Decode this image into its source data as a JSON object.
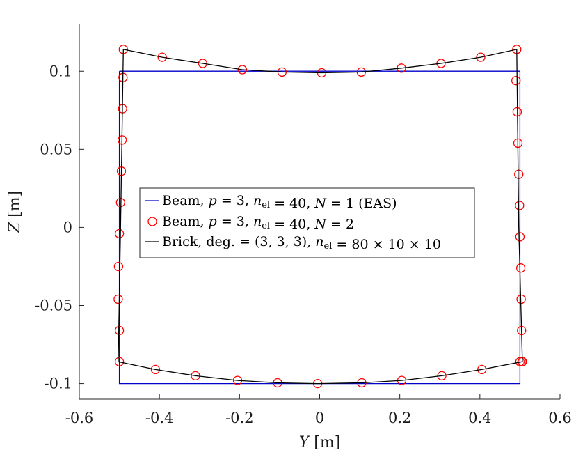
{
  "chart_data": {
    "type": "line",
    "title": "",
    "xlabel": "Y [m]",
    "ylabel": "Z [m]",
    "xlim": [
      -0.6,
      0.6
    ],
    "ylim": [
      -0.11,
      0.13
    ],
    "xticks": [
      -0.6,
      -0.4,
      -0.2,
      0,
      0.2,
      0.4,
      0.6
    ],
    "xtick_labels": [
      "-0.6",
      "-0.4",
      "-0.2",
      "0",
      "0.2",
      "0.4",
      "0.6"
    ],
    "yticks": [
      -0.1,
      -0.05,
      0,
      0.05,
      0.1
    ],
    "ytick_labels": [
      "-0.1",
      "-0.05",
      "0",
      "0.05",
      "0.1"
    ],
    "grid": false,
    "legend_position": "center-left",
    "series": [
      {
        "name": "Beam, p = 3, n_el = 40, N = 1 (EAS)",
        "legend_label": "Beam, p = 3, nel = 40, N = 1 (EAS)",
        "style": "line",
        "color": "#0000cc",
        "x": [
          -0.5,
          0.5,
          0.5,
          -0.5,
          -0.5
        ],
        "y": [
          0.1,
          0.1,
          -0.1,
          -0.1,
          0.1
        ]
      },
      {
        "name": "Beam, p = 3, n_el = 40, N = 2",
        "legend_label": "Beam, p = 3, nel = 40, N = 2",
        "style": "markers",
        "marker": "circle",
        "color": "#ff0000",
        "x": [
          -0.49,
          -0.393,
          -0.292,
          -0.193,
          -0.094,
          0.005,
          0.104,
          0.204,
          0.303,
          0.402,
          0.492,
          0.49,
          0.493,
          0.495,
          0.497,
          0.499,
          0.5,
          0.502,
          0.503,
          0.504,
          0.505,
          0.506,
          0.5,
          0.405,
          0.305,
          0.205,
          0.105,
          -0.005,
          -0.105,
          -0.205,
          -0.31,
          -0.41,
          -0.5,
          -0.5,
          -0.503,
          -0.502,
          -0.5,
          -0.497,
          -0.495,
          -0.493,
          -0.492,
          -0.491
        ],
        "y": [
          0.114,
          0.109,
          0.105,
          0.101,
          0.0995,
          0.099,
          0.0995,
          0.102,
          0.105,
          0.109,
          0.114,
          0.094,
          0.074,
          0.054,
          0.034,
          0.014,
          -0.006,
          -0.026,
          -0.046,
          -0.066,
          -0.086,
          -0.086,
          -0.086,
          -0.091,
          -0.095,
          -0.098,
          -0.0995,
          -0.1,
          -0.0995,
          -0.098,
          -0.095,
          -0.091,
          -0.086,
          -0.066,
          -0.046,
          -0.025,
          -0.004,
          0.016,
          0.036,
          0.056,
          0.076,
          0.096
        ]
      },
      {
        "name": "Brick, deg. = (3,3,3), n_el = 80 x 10 x 10",
        "legend_label": "Brick, deg. = (3, 3, 3), nel = 80 × 10 × 10",
        "style": "line",
        "color": "#000000",
        "x": [
          -0.49,
          -0.393,
          -0.292,
          -0.193,
          -0.094,
          0.005,
          0.104,
          0.204,
          0.303,
          0.402,
          0.492,
          0.497,
          0.506,
          0.405,
          0.305,
          0.205,
          0.105,
          -0.005,
          -0.105,
          -0.205,
          -0.31,
          -0.41,
          -0.503,
          -0.497,
          -0.49
        ],
        "y": [
          0.114,
          0.109,
          0.105,
          0.101,
          0.0995,
          0.099,
          0.0995,
          0.102,
          0.105,
          0.109,
          0.114,
          0.0,
          -0.086,
          -0.091,
          -0.095,
          -0.098,
          -0.0995,
          -0.1,
          -0.0995,
          -0.098,
          -0.095,
          -0.091,
          -0.086,
          0.0,
          0.114
        ]
      }
    ]
  }
}
